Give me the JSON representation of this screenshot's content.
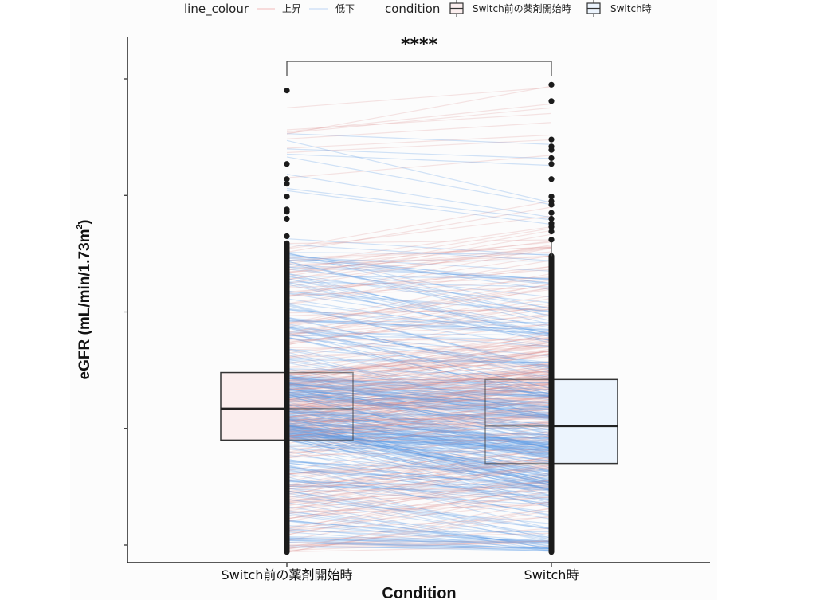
{
  "chart_data": {
    "type": "box",
    "subtype": "paired-lines-with-boxplot",
    "title": "",
    "xlabel": "Condition",
    "ylabel": "eGFR (mL/min/1.73m²)",
    "ylabel_parts": {
      "main": "eGFR (mL/min/1.73m",
      "sup": "2",
      "close": ")"
    },
    "categories": [
      "Switch前の薬剤開始時",
      "Switch時"
    ],
    "y_ticks": [
      0,
      1,
      2,
      3,
      4
    ],
    "y_tick_labels_visible": false,
    "ylim": [
      -0.15,
      4.36
    ],
    "grid": false,
    "significance": {
      "label": "****",
      "between": [
        "Switch前の薬剤開始時",
        "Switch時"
      ],
      "y": 4.15
    },
    "legend": {
      "placement": "top",
      "groups": [
        {
          "title": "line_colour",
          "items": [
            {
              "label": "上昇",
              "color": "#f4c7c7"
            },
            {
              "label": "低下",
              "color": "#c9dcf5"
            }
          ]
        },
        {
          "title": "condition",
          "items": [
            {
              "label": "Switch前の薬剤開始時",
              "fill": "#fbeeee"
            },
            {
              "label": "Switch時",
              "fill": "#ecf4fd"
            }
          ]
        }
      ]
    },
    "series": [
      {
        "name": "Switch前の薬剤開始時",
        "box": {
          "q1": 0.9,
          "median": 1.17,
          "q3": 1.48,
          "whisker_low": -0.06,
          "whisker_high": 2.59
        },
        "fill": "#fbeeee",
        "outliers": [
          3.9,
          3.27,
          3.14,
          3.1,
          2.99,
          2.88,
          2.86,
          2.8,
          2.65
        ]
      },
      {
        "name": "Switch時",
        "box": {
          "q1": 0.7,
          "median": 1.02,
          "q3": 1.42,
          "whisker_low": -0.06,
          "whisker_high": 2.48
        },
        "fill": "#ecf4fd",
        "outliers": [
          3.95,
          3.81,
          3.48,
          3.42,
          3.39,
          3.32,
          3.27,
          3.14,
          2.99,
          2.95,
          2.92,
          2.85,
          2.8,
          2.76,
          2.73,
          2.69,
          2.62
        ]
      }
    ],
    "line_colors": {
      "上昇": "#d98a8a",
      "低下": "#5b9be6"
    },
    "n_pairs_drawn": 600
  }
}
